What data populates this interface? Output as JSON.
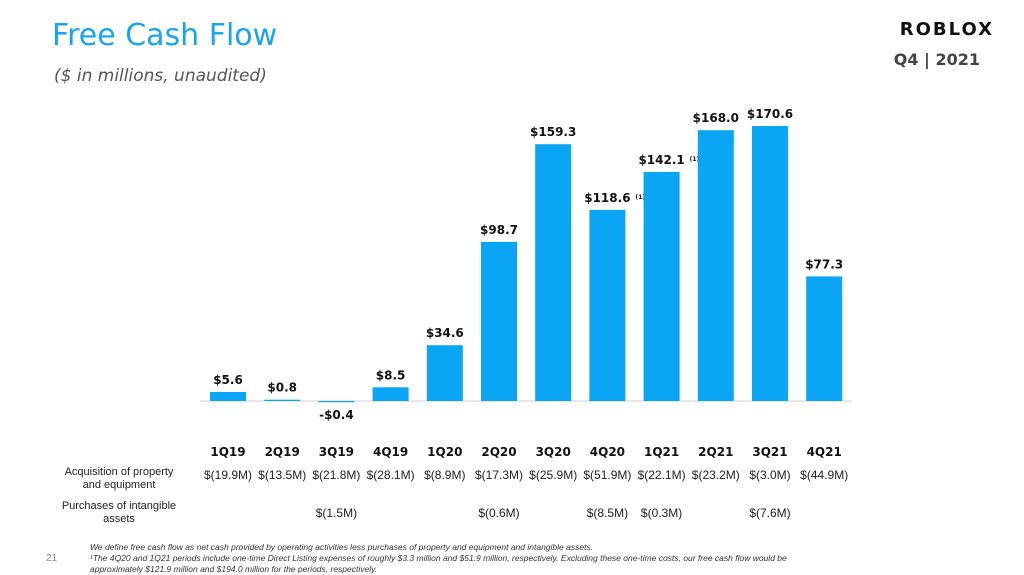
{
  "header": {
    "title": "Free Cash Flow",
    "subtitle": "($ in millions,  unaudited)",
    "logo_text": "ROBLOX",
    "period": "Q4 | 2021"
  },
  "chart_data": {
    "type": "bar",
    "title": "Free Cash Flow",
    "categories": [
      "1Q19",
      "2Q19",
      "3Q19",
      "4Q19",
      "1Q20",
      "2Q20",
      "3Q20",
      "4Q20",
      "1Q21",
      "2Q21",
      "3Q21",
      "4Q21"
    ],
    "values": [
      5.6,
      0.8,
      -0.4,
      8.5,
      34.6,
      98.7,
      159.3,
      118.6,
      142.1,
      168.0,
      170.6,
      77.3
    ],
    "value_labels": [
      "$5.6",
      "$0.8",
      "-$0.4",
      "$8.5",
      "$34.6",
      "$98.7",
      "$159.3",
      "$118.6",
      "$142.1",
      "$168.0",
      "$170.6",
      "$77.3"
    ],
    "footnote_markers": [
      "",
      "",
      "",
      "",
      "",
      "",
      "",
      "(1)",
      "(1)",
      "",
      "",
      ""
    ],
    "bar_color": "#0aa5f5",
    "ylim": [
      -5,
      175
    ]
  },
  "table": {
    "rows": [
      {
        "label_lines": [
          "Acquisition of property",
          "and equipment"
        ],
        "values": [
          "$(19.9M)",
          "$(13.5M)",
          "$(21.8M)",
          "$(28.1M)",
          "$(8.9M)",
          "$(17.3M)",
          "$(25.9M)",
          "$(51.9M)",
          "$(22.1M)",
          "$(23.2M)",
          "$(3.0M)",
          "$(44.9M)"
        ]
      },
      {
        "label_lines": [
          "Purchases of intangible",
          "assets"
        ],
        "values": [
          "",
          "",
          "$(1.5M)",
          "",
          "",
          "$(0.6M)",
          "",
          "$(8.5M)",
          "$(0.3M)",
          "",
          "$(7.6M)",
          ""
        ]
      }
    ]
  },
  "footer": {
    "page_number": "21",
    "note_1": "We define free cash flow as net cash provided by operating activities less purchases of property and equipment and intangible assets.",
    "note_2": "¹The 4Q20 and 1Q21 periods include one-time Direct Listing expenses of roughly $3.3 million and $51.9 million, respectively.  Excluding these one-time costs, our free cash flow would be",
    "note_3": "approximately $121.9 million and $194.0 million for the periods, respectively."
  }
}
